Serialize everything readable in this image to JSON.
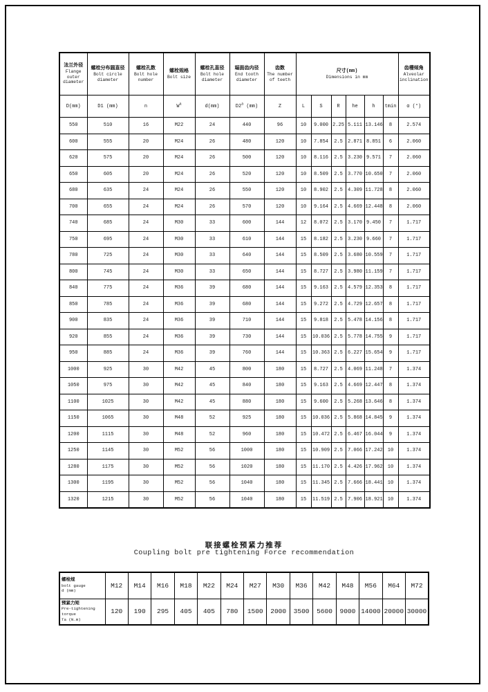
{
  "main_table": {
    "group_headers": [
      {
        "zh": "法兰外径",
        "en": "Flange outer diameter",
        "cols": 1
      },
      {
        "zh": "螺栓分布圆直径",
        "en": "Bolt circle diameter",
        "cols": 1
      },
      {
        "zh": "螺栓孔数",
        "en": "Bolt hole number",
        "cols": 1
      },
      {
        "zh": "螺栓规格",
        "en": "Bolt size",
        "cols": 1
      },
      {
        "zh": "螺栓孔直径",
        "en": "Bolt hole diameter",
        "cols": 1
      },
      {
        "zh": "端面齿内径",
        "en": "End tooth diameter",
        "cols": 1
      },
      {
        "zh": "齿数",
        "en": "The number of teeth",
        "cols": 1
      },
      {
        "zh": "尺寸(mm)",
        "en": "Dimensions in mm",
        "cols": 6
      },
      {
        "zh": "齿槽倾角",
        "en": "Alveolar inclination",
        "cols": 1
      }
    ],
    "unit_row": [
      "D(mm)",
      "D1 (mm)",
      "n",
      "W^a",
      "d(mm)",
      "D2^a (mm)",
      "Z",
      "L",
      "S",
      "R",
      "he",
      "h",
      "tmin",
      "α (°)"
    ],
    "rows": [
      [
        "550",
        "510",
        "16",
        "M22",
        "24",
        "440",
        "96",
        "10",
        "9.000",
        "2.25",
        "5.111",
        "13.146",
        "8",
        "2.574"
      ],
      [
        "600",
        "555",
        "20",
        "M24",
        "26",
        "480",
        "120",
        "10",
        "7.854",
        "2.5",
        "2.871",
        "8.851",
        "6",
        "2.060"
      ],
      [
        "620",
        "575",
        "20",
        "M24",
        "26",
        "500",
        "120",
        "10",
        "8.116",
        "2.5",
        "3.230",
        "9.571",
        "7",
        "2.060"
      ],
      [
        "650",
        "605",
        "20",
        "M24",
        "26",
        "520",
        "120",
        "10",
        "8.509",
        "2.5",
        "3.770",
        "10.650",
        "7",
        "2.060"
      ],
      [
        "680",
        "635",
        "24",
        "M24",
        "26",
        "550",
        "120",
        "10",
        "8.902",
        "2.5",
        "4.309",
        "11.728",
        "8",
        "2.060"
      ],
      [
        "700",
        "655",
        "24",
        "M24",
        "26",
        "570",
        "120",
        "10",
        "9.164",
        "2.5",
        "4.669",
        "12.448",
        "8",
        "2.060"
      ],
      [
        "740",
        "685",
        "24",
        "M30",
        "33",
        "600",
        "144",
        "12",
        "8.072",
        "2.5",
        "3.170",
        "9.450",
        "7",
        "1.717"
      ],
      [
        "750",
        "695",
        "24",
        "M30",
        "33",
        "610",
        "144",
        "15",
        "8.182",
        "2.5",
        "3.230",
        "9.660",
        "7",
        "1.717"
      ],
      [
        "780",
        "725",
        "24",
        "M30",
        "33",
        "640",
        "144",
        "15",
        "8.509",
        "2.5",
        "3.680",
        "10.559",
        "7",
        "1.717"
      ],
      [
        "800",
        "745",
        "24",
        "M30",
        "33",
        "650",
        "144",
        "15",
        "8.727",
        "2.5",
        "3.980",
        "11.159",
        "7",
        "1.717"
      ],
      [
        "840",
        "775",
        "24",
        "M36",
        "39",
        "680",
        "144",
        "15",
        "9.163",
        "2.5",
        "4.579",
        "12.353",
        "8",
        "1.717"
      ],
      [
        "850",
        "785",
        "24",
        "M36",
        "39",
        "680",
        "144",
        "15",
        "9.272",
        "2.5",
        "4.729",
        "12.657",
        "8",
        "1.717"
      ],
      [
        "900",
        "835",
        "24",
        "M36",
        "39",
        "710",
        "144",
        "15",
        "9.818",
        "2.5",
        "5.478",
        "14.156",
        "8",
        "1.717"
      ],
      [
        "920",
        "855",
        "24",
        "M36",
        "39",
        "730",
        "144",
        "15",
        "10.036",
        "2.5",
        "5.778",
        "14.755",
        "9",
        "1.717"
      ],
      [
        "950",
        "885",
        "24",
        "M36",
        "39",
        "760",
        "144",
        "15",
        "10.363",
        "2.5",
        "6.227",
        "15.654",
        "9",
        "1.717"
      ],
      [
        "1000",
        "925",
        "30",
        "M42",
        "45",
        "800",
        "180",
        "15",
        "8.727",
        "2.5",
        "4.069",
        "11.248",
        "7",
        "1.374"
      ],
      [
        "1050",
        "975",
        "30",
        "M42",
        "45",
        "840",
        "180",
        "15",
        "9.163",
        "2.5",
        "4.669",
        "12.447",
        "8",
        "1.374"
      ],
      [
        "1100",
        "1025",
        "30",
        "M42",
        "45",
        "880",
        "180",
        "15",
        "9.600",
        "2.5",
        "5.268",
        "13.646",
        "8",
        "1.374"
      ],
      [
        "1150",
        "1065",
        "30",
        "M48",
        "52",
        "925",
        "180",
        "15",
        "10.036",
        "2.5",
        "5.868",
        "14.845",
        "9",
        "1.374"
      ],
      [
        "1200",
        "1115",
        "30",
        "M48",
        "52",
        "960",
        "180",
        "15",
        "10.472",
        "2.5",
        "6.467",
        "16.044",
        "9",
        "1.374"
      ],
      [
        "1250",
        "1145",
        "30",
        "M52",
        "56",
        "1000",
        "180",
        "15",
        "10.909",
        "2.5",
        "7.066",
        "17.242",
        "10",
        "1.374"
      ],
      [
        "1280",
        "1175",
        "30",
        "M52",
        "56",
        "1020",
        "180",
        "15",
        "11.170",
        "2.5",
        "4.426",
        "17.962",
        "10",
        "1.374"
      ],
      [
        "1300",
        "1195",
        "30",
        "M52",
        "56",
        "1040",
        "180",
        "15",
        "11.345",
        "2.5",
        "7.666",
        "18.441",
        "10",
        "1.374"
      ],
      [
        "1320",
        "1215",
        "30",
        "M52",
        "56",
        "1040",
        "180",
        "15",
        "11.519",
        "2.5",
        "7.906",
        "18.921",
        "10",
        "1.374"
      ]
    ]
  },
  "bottom_section": {
    "title_zh": "联接螺栓预紧力推荐",
    "title_en": "Coupling bolt pre tightening Force recommendation",
    "table": {
      "gauge_header": {
        "zh": "螺栓规",
        "en": "bolt gauge",
        "unit": "d (mm)"
      },
      "torque_header": {
        "zh": "预紧力矩",
        "en": "Pre-tightening",
        "en2": "torque",
        "unit": "Ta (N.m)"
      },
      "gauges": [
        "M12",
        "M14",
        "M16",
        "M18",
        "M22",
        "M24",
        "M27",
        "M30",
        "M36",
        "M42",
        "M48",
        "M56",
        "M64",
        "M72"
      ],
      "torques": [
        "120",
        "190",
        "295",
        "405",
        "405",
        "780",
        "1500",
        "2000",
        "3500",
        "5600",
        "9000",
        "14000",
        "20000",
        "30000"
      ]
    }
  }
}
